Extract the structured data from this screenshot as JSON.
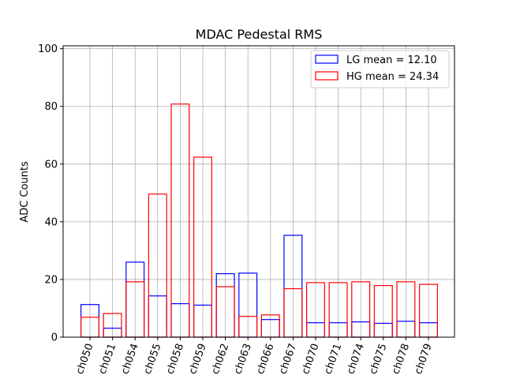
{
  "chart_data": {
    "type": "bar",
    "title": "MDAC Pedestal RMS",
    "xlabel": "",
    "ylabel": "ADC Counts",
    "ylim": [
      0,
      101
    ],
    "yticks": [
      0,
      20,
      40,
      60,
      80,
      100
    ],
    "grid": true,
    "legend_position": "top-right",
    "categories": [
      "ch050",
      "ch051",
      "ch054",
      "ch055",
      "ch058",
      "ch059",
      "ch062",
      "ch063",
      "ch066",
      "ch067",
      "ch070",
      "ch071",
      "ch074",
      "ch075",
      "ch078",
      "ch079"
    ],
    "series": [
      {
        "name": "LG mean = 12.10",
        "color": "#0000ff",
        "values": [
          11.3,
          3.1,
          26.0,
          14.3,
          11.6,
          11.1,
          22.0,
          22.2,
          6.1,
          35.3,
          5.0,
          5.0,
          5.3,
          4.8,
          5.5,
          5.0
        ]
      },
      {
        "name": "HG mean = 24.34",
        "color": "#ff0000",
        "values": [
          6.9,
          8.2,
          19.2,
          49.6,
          80.8,
          62.4,
          17.5,
          7.2,
          7.7,
          16.8,
          18.9,
          18.9,
          19.2,
          17.9,
          19.2,
          18.3
        ]
      }
    ]
  }
}
